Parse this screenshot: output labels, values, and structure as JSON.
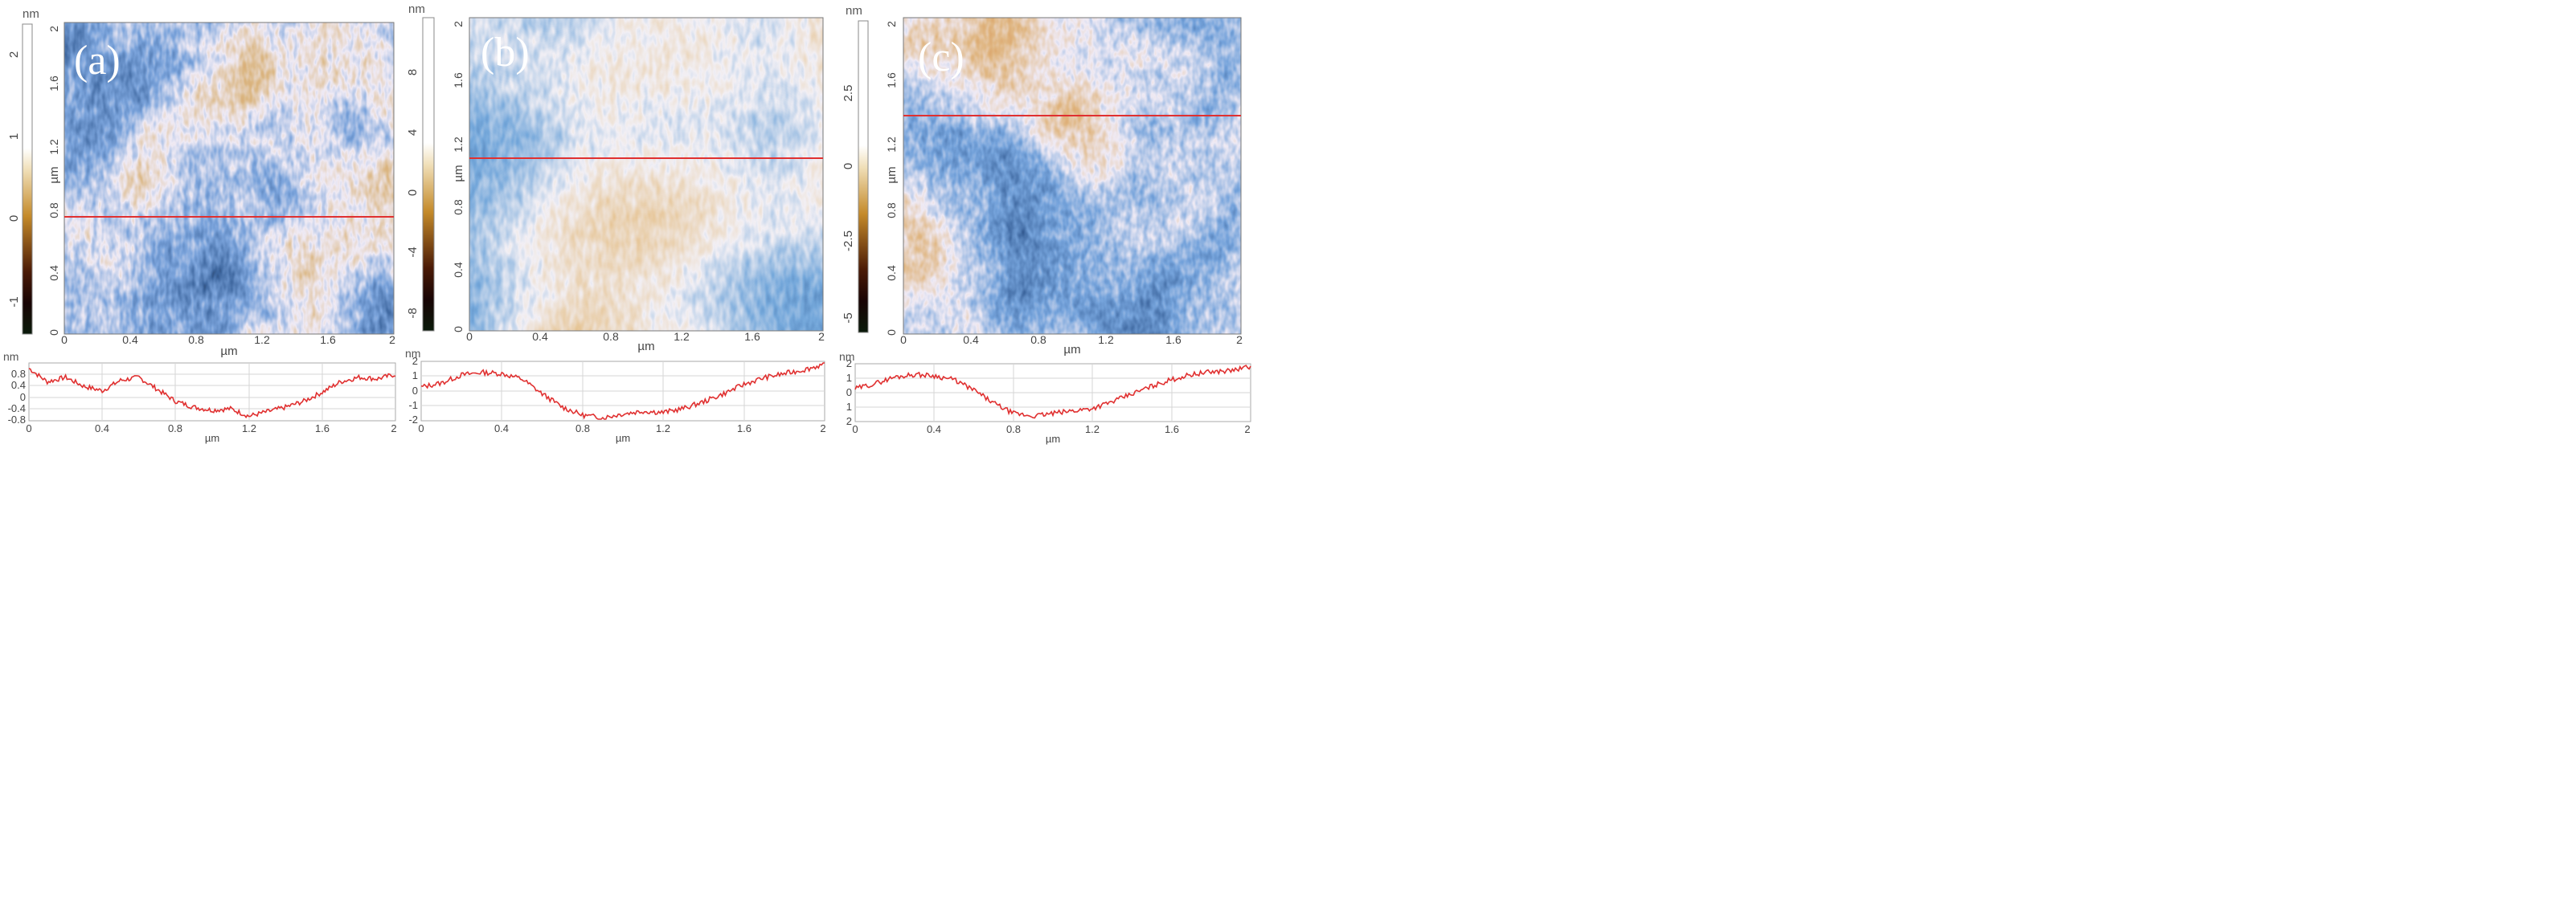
{
  "panels": [
    {
      "label": "(a)",
      "colorbar": {
        "unit": "nm",
        "ticks": [
          "2",
          "1",
          "0",
          "-1"
        ]
      },
      "image": {
        "y_axis_label": "µm",
        "x_axis_label": "µm",
        "y_ticks": [
          "2",
          "1.6",
          "1.2",
          "0.8",
          "0.4",
          "0"
        ],
        "x_ticks": [
          "0",
          "0.4",
          "0.8",
          "1.2",
          "1.6",
          "2"
        ]
      },
      "profile": {
        "unit": "nm",
        "x_label": "µm",
        "y_ticks": [
          "0.8",
          "0.4",
          "0",
          "-0.4",
          "-0.8"
        ],
        "x_ticks": [
          "0",
          "0.4",
          "0.8",
          "1.2",
          "1.6",
          "2"
        ]
      }
    },
    {
      "label": "(b)",
      "colorbar": {
        "unit": "nm",
        "ticks": [
          "8",
          "4",
          "0",
          "-4",
          "-8"
        ]
      },
      "image": {
        "y_axis_label": "µm",
        "x_axis_label": "µm",
        "y_ticks": [
          "2",
          "1.6",
          "1.2",
          "0.8",
          "0.4",
          "0"
        ],
        "x_ticks": [
          "0",
          "0.4",
          "0.8",
          "1.2",
          "1.6",
          "2"
        ]
      },
      "profile": {
        "unit": "nm",
        "x_label": "µm",
        "y_ticks": [
          "2",
          "1",
          "0",
          "-1",
          "-2"
        ],
        "x_ticks": [
          "0",
          "0.4",
          "0.8",
          "1.2",
          "1.6",
          "2"
        ]
      }
    },
    {
      "label": "(c)",
      "colorbar": {
        "unit": "nm",
        "ticks": [
          "2.5",
          "0",
          "-2.5",
          "-5"
        ]
      },
      "image": {
        "y_axis_label": "µm",
        "x_axis_label": "µm",
        "y_ticks": [
          "2",
          "1.6",
          "1.2",
          "0.8",
          "0.4",
          "0"
        ],
        "x_ticks": [
          "0",
          "0.4",
          "0.8",
          "1.2",
          "1.6",
          "2"
        ]
      },
      "profile": {
        "unit": "nm",
        "x_label": "µm",
        "y_ticks": [
          "2",
          "1",
          "0",
          "1",
          "2"
        ],
        "x_ticks": [
          "0",
          "0.4",
          "0.8",
          "1.2",
          "1.6",
          "2"
        ]
      }
    }
  ],
  "colors": {
    "blue": "#3f77b8",
    "tan": "#d8a060",
    "line": "#e03030",
    "colorbar_top": "#ffffff",
    "colorbar_mid": "#c48a2a",
    "colorbar_low": "#2a0a00",
    "colorbar_bottom": "#0a1a0a"
  },
  "profiles_nm": {
    "a": [
      0.8,
      0.35,
      0.5,
      0.2,
      0.05,
      0.4,
      0.5,
      0.1,
      -0.3,
      -0.5,
      -0.6,
      -0.55,
      -0.8,
      -0.65,
      -0.5,
      -0.3,
      0.0,
      0.35,
      0.5,
      0.45,
      0.6
    ],
    "b": [
      0.3,
      0.6,
      1.2,
      1.4,
      1.3,
      0.9,
      -0.2,
      -1.2,
      -1.8,
      -2.0,
      -1.7,
      -1.5,
      -1.6,
      -1.3,
      -0.8,
      -0.2,
      0.5,
      1.0,
      1.3,
      1.6,
      2.0
    ],
    "c": [
      0.3,
      0.7,
      1.2,
      1.4,
      1.3,
      1.0,
      0.2,
      -0.8,
      -1.6,
      -1.8,
      -1.6,
      -1.4,
      -1.2,
      -0.7,
      -0.1,
      0.5,
      1.0,
      1.4,
      1.6,
      1.7,
      2.0
    ]
  }
}
